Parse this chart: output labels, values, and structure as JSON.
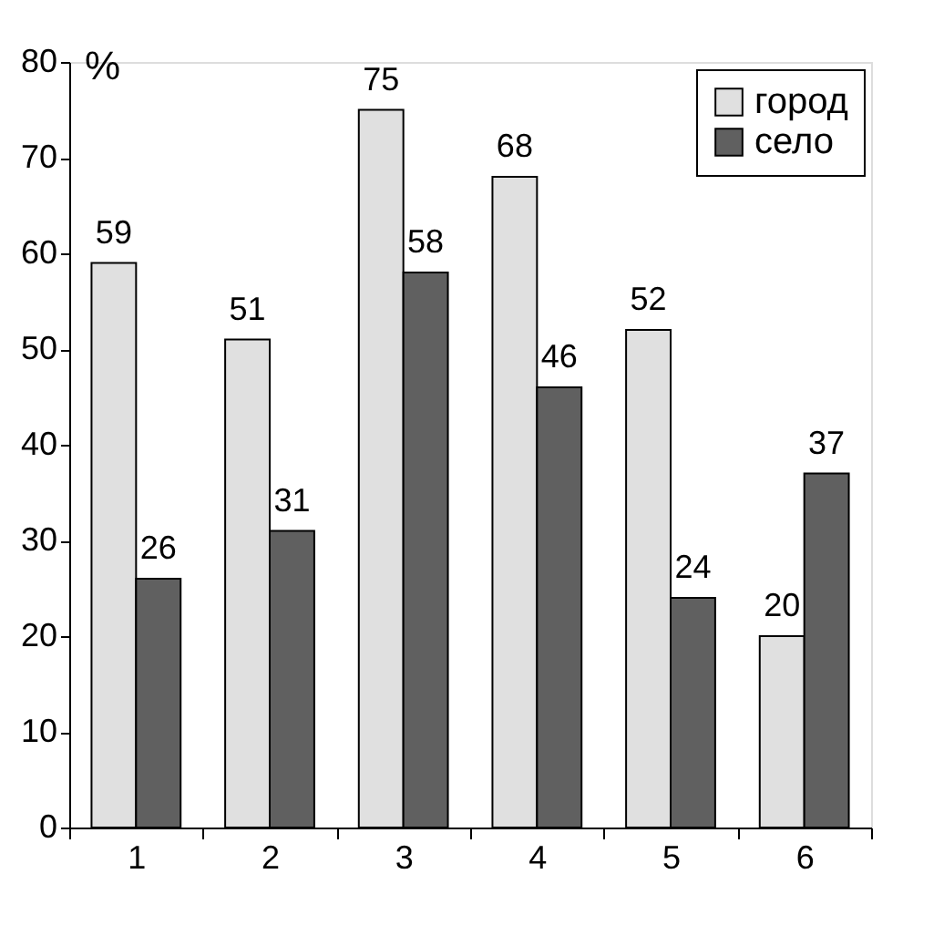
{
  "chart_data": {
    "type": "bar",
    "ylabel": "%",
    "categories": [
      "1",
      "2",
      "3",
      "4",
      "5",
      "6"
    ],
    "series": [
      {
        "name": "город",
        "color": "#e0e0e0",
        "values": [
          59,
          51,
          75,
          68,
          52,
          20
        ]
      },
      {
        "name": "село",
        "color": "#606060",
        "values": [
          26,
          31,
          58,
          46,
          24,
          37
        ]
      }
    ],
    "ylim": [
      0,
      80
    ],
    "yticks": [
      0,
      10,
      20,
      30,
      40,
      50,
      60,
      70,
      80
    ],
    "data_labels": true,
    "legend": "top right",
    "grid": false
  }
}
